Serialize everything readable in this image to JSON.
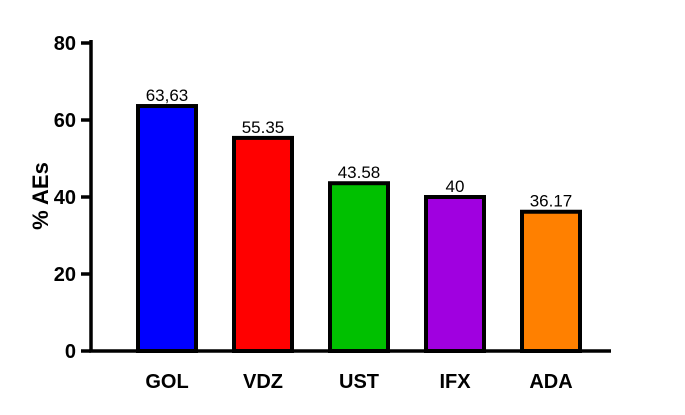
{
  "chart_data": {
    "type": "bar",
    "categories": [
      "GOL",
      "VDZ",
      "UST",
      "IFX",
      "ADA"
    ],
    "values": [
      63.63,
      55.35,
      43.58,
      40,
      36.17
    ],
    "data_labels": [
      "63,63",
      "55.35",
      "43.58",
      "40",
      "36.17"
    ],
    "colors": [
      "#0000ff",
      "#ff0000",
      "#00c000",
      "#a000e0",
      "#ff8000"
    ],
    "ylabel": "% AEs",
    "xlabel": "",
    "ylim": [
      0,
      80
    ],
    "yticks": [
      0,
      20,
      40,
      60,
      80
    ],
    "grid": false,
    "legend": "none"
  }
}
